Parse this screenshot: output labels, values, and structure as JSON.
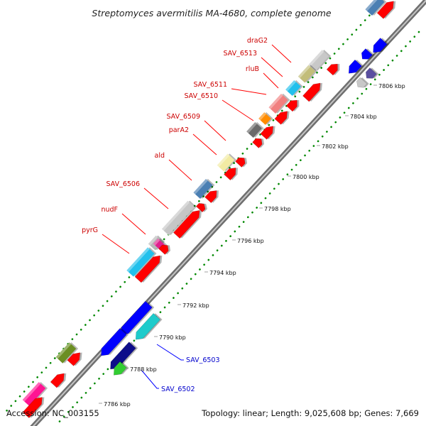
{
  "title": "Streptomyces avermitilis MA-4680, complete genome",
  "footer": {
    "accession": "Accession: NC_003155",
    "summary": "Topology: linear; Length: 9,025,608 bp; Genes: 7,669"
  },
  "colors": {
    "forward_label": "#cc0000",
    "reverse_label": "#0000cc",
    "backbone": "#888888",
    "tick_dots": "#008800",
    "default_cds": "#ff0000"
  },
  "scale_ticks": [
    "7786 kbp",
    "7788 kbp",
    "7790 kbp",
    "7792 kbp",
    "7794 kbp",
    "7796 kbp",
    "7798 kbp",
    "7800 kbp",
    "7802 kbp",
    "7804 kbp",
    "7806 kbp"
  ],
  "forward_gene_labels": [
    "draG2",
    "SAV_6513",
    "rluB",
    "SAV_6511",
    "SAV_6510",
    "SAV_6509",
    "parA2",
    "ald",
    "SAV_6506",
    "nudF",
    "pyrG"
  ],
  "reverse_gene_labels": [
    "SAV_6503",
    "SAV_6502"
  ]
}
